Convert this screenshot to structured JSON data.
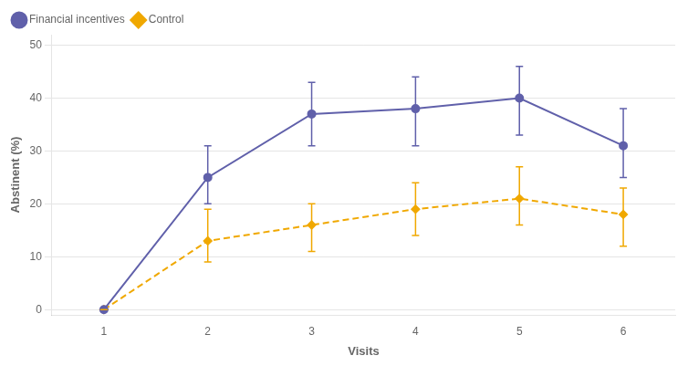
{
  "chart_data": {
    "type": "line",
    "x_label": "Visits",
    "y_label": "Abstinent (%)",
    "x": [
      1,
      2,
      3,
      4,
      5,
      6
    ],
    "series": [
      {
        "name": "Financial incentives",
        "color": "#6060aa",
        "marker": "circle",
        "line_style": "solid",
        "values": [
          0,
          25,
          37,
          38,
          40,
          31
        ],
        "error_lower": [
          0,
          5,
          6,
          7,
          7,
          6
        ],
        "error_upper": [
          0,
          6,
          6,
          6,
          6,
          7
        ]
      },
      {
        "name": "Control",
        "color": "#f0a800",
        "marker": "diamond",
        "line_style": "dashed",
        "values": [
          0,
          13,
          16,
          19,
          21,
          18
        ],
        "error_lower": [
          0,
          4,
          5,
          5,
          5,
          6
        ],
        "error_upper": [
          0,
          6,
          4,
          5,
          6,
          5
        ]
      }
    ],
    "xlim": [
      0.5,
      6.5
    ],
    "xticks": [
      1,
      2,
      3,
      4,
      5,
      6
    ],
    "ylim": [
      -1,
      52
    ],
    "yticks": [
      0,
      10,
      20,
      30,
      40,
      50
    ],
    "grid": "y",
    "legend": "upper left"
  }
}
